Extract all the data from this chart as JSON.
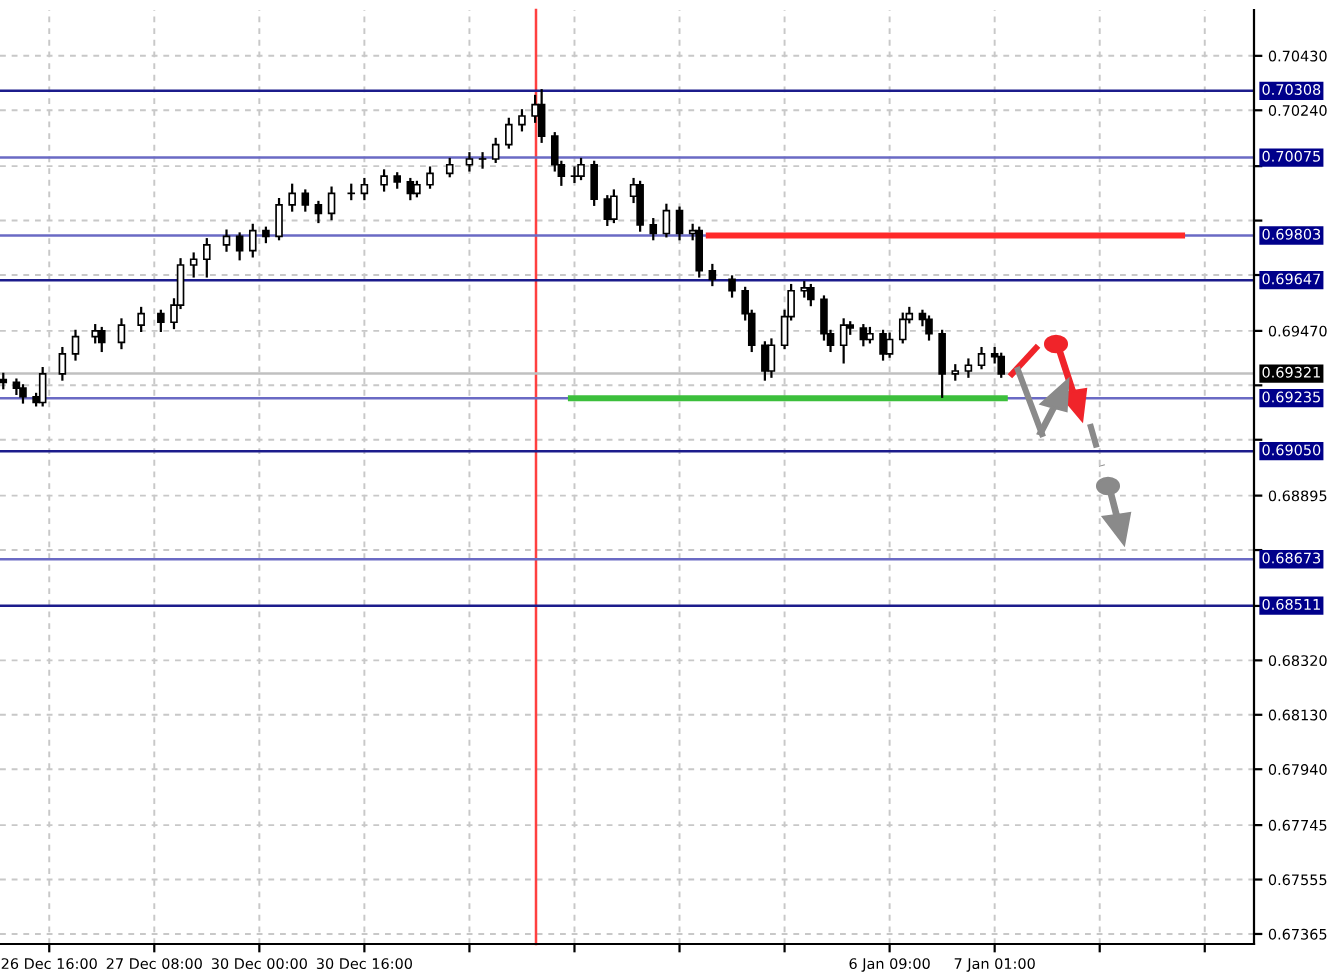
{
  "chart_data": {
    "type": "candlestick",
    "categories": [
      null,
      null,
      null,
      null,
      null,
      null,
      null,
      "26 Dec 16:00",
      null,
      null,
      null,
      null,
      null,
      null,
      null,
      null,
      null,
      null,
      null,
      null,
      null,
      null,
      null,
      "27 Dec 08:00",
      null,
      null,
      null,
      null,
      null,
      null,
      null,
      null,
      null,
      null,
      null,
      null,
      null,
      null,
      null,
      "30 Dec 00:00",
      null,
      null,
      null,
      null,
      null,
      null,
      null,
      null,
      null,
      null,
      null,
      null,
      null,
      null,
      null,
      "30 Dec 16:00",
      null,
      null,
      null,
      null,
      null,
      null,
      null,
      null,
      null,
      null,
      null,
      null,
      null,
      null,
      null,
      null,
      null,
      null,
      null,
      null,
      null,
      null,
      null,
      null,
      null,
      null,
      null,
      null,
      null,
      null,
      null,
      null,
      null,
      null,
      null,
      null,
      null,
      null,
      null,
      null,
      null,
      null,
      null,
      null,
      null,
      null,
      null,
      null,
      null,
      null,
      null,
      null,
      null,
      null,
      null,
      null,
      null,
      null,
      null,
      null,
      null,
      null,
      null,
      null,
      null,
      null,
      null,
      null,
      null,
      null,
      null,
      null,
      null,
      null,
      null,
      null,
      null,
      null,
      null,
      "6 Jan 09:00",
      null,
      null,
      null,
      null,
      null,
      null,
      null,
      null,
      null,
      null,
      null,
      null,
      null,
      null,
      null,
      "7 Jan 01:00",
      null,
      null,
      null,
      null,
      null,
      null,
      null,
      null,
      null,
      null,
      null,
      null,
      null,
      null,
      null,
      null,
      null,
      null,
      null,
      null,
      null,
      null,
      null,
      null,
      null,
      null,
      null,
      null,
      null,
      null,
      null,
      null,
      null,
      null,
      null,
      null,
      null,
      null,
      null
    ],
    "ohlc": [
      [
        0.693,
        0.6932,
        0.6927,
        0.6929
      ],
      null,
      [
        0.6929,
        0.693,
        0.6925,
        0.6927
      ],
      [
        0.6927,
        0.6928,
        0.6922,
        0.6924
      ],
      null,
      [
        0.6924,
        0.6925,
        0.6921,
        0.6922
      ],
      [
        0.6922,
        0.6934,
        0.6921,
        0.6932
      ],
      null,
      null,
      [
        0.6932,
        0.6941,
        0.693,
        0.6939
      ],
      null,
      [
        0.6939,
        0.6947,
        0.6937,
        0.6945
      ],
      null,
      null,
      [
        0.6945,
        0.6949,
        0.6943,
        0.6947
      ],
      [
        0.6947,
        0.6948,
        0.694,
        0.6943
      ],
      null,
      null,
      [
        0.6943,
        0.6951,
        0.6941,
        0.6949
      ],
      null,
      null,
      [
        0.6949,
        0.6955,
        0.6947,
        0.6953
      ],
      null,
      null,
      [
        0.6953,
        0.6954,
        0.6947,
        0.695
      ],
      null,
      [
        0.695,
        0.6958,
        0.6948,
        0.6956
      ],
      [
        0.6956,
        0.6972,
        0.6955,
        0.697
      ],
      null,
      [
        0.697,
        0.6974,
        0.6966,
        0.6972
      ],
      null,
      [
        0.6972,
        0.6979,
        0.6966,
        0.6977
      ],
      null,
      null,
      [
        0.6977,
        0.6982,
        0.6975,
        0.698
      ],
      null,
      [
        0.698,
        0.6981,
        0.6972,
        0.6975
      ],
      null,
      [
        0.6975,
        0.6984,
        0.6973,
        0.6982
      ],
      null,
      [
        0.6982,
        0.6983,
        0.6978,
        0.698
      ],
      null,
      [
        0.698,
        0.6993,
        0.6979,
        0.6991
      ],
      null,
      [
        0.6991,
        0.6998,
        0.6989,
        0.6995
      ],
      null,
      [
        0.6995,
        0.6996,
        0.6989,
        0.6991
      ],
      null,
      [
        0.6991,
        0.6992,
        0.6985,
        0.6988
      ],
      null,
      [
        0.6988,
        0.6997,
        0.6986,
        0.6995
      ],
      null,
      null,
      [
        0.6995,
        0.6998,
        0.6993,
        0.6995
      ],
      null,
      [
        0.6995,
        0.7,
        0.6993,
        0.6998
      ],
      null,
      null,
      [
        0.6998,
        0.7003,
        0.6996,
        0.7001
      ],
      null,
      [
        0.7001,
        0.7002,
        0.6997,
        0.6999
      ],
      null,
      [
        0.6999,
        0.7,
        0.6993,
        0.6995
      ],
      [
        0.6995,
        0.6999,
        0.6994,
        0.6998
      ],
      null,
      [
        0.6998,
        0.7004,
        0.6997,
        0.7002
      ],
      null,
      null,
      [
        0.7002,
        0.7007,
        0.7001,
        0.7005
      ],
      null,
      null,
      [
        0.7005,
        0.7009,
        0.7003,
        0.7007
      ],
      null,
      [
        0.7007,
        0.7009,
        0.7004,
        0.7007
      ],
      null,
      [
        0.7007,
        0.7014,
        0.7006,
        0.7012
      ],
      null,
      [
        0.7012,
        0.7021,
        0.7011,
        0.7019
      ],
      null,
      [
        0.7019,
        0.7024,
        0.7017,
        0.7022
      ],
      null,
      [
        0.7022,
        0.7029,
        0.702,
        0.7026
      ],
      [
        0.7026,
        0.7031,
        0.7013,
        0.7015
      ],
      null,
      [
        0.7015,
        0.7016,
        0.7003,
        0.7005
      ],
      [
        0.7005,
        0.7006,
        0.6998,
        0.7001
      ],
      null,
      [
        0.7001,
        0.7004,
        0.6999,
        0.7001
      ],
      [
        0.7001,
        0.7007,
        0.7,
        0.7005
      ],
      null,
      [
        0.7005,
        0.7006,
        0.6991,
        0.6993
      ],
      null,
      [
        0.6993,
        0.6994,
        0.6984,
        0.6986
      ],
      [
        0.6986,
        0.6996,
        0.6985,
        0.6994
      ],
      null,
      null,
      [
        0.6994,
        0.7,
        0.6992,
        0.6998
      ],
      [
        0.6998,
        0.6999,
        0.6982,
        0.6984
      ],
      null,
      [
        0.6984,
        0.6986,
        0.6979,
        0.6981
      ],
      null,
      [
        0.6981,
        0.6991,
        0.698,
        0.6989
      ],
      null,
      [
        0.6989,
        0.699,
        0.6979,
        0.6981
      ],
      null,
      [
        0.6981,
        0.6984,
        0.6979,
        0.6982
      ],
      [
        0.6982,
        0.6983,
        0.6966,
        0.6968
      ],
      null,
      [
        0.6968,
        0.697,
        0.6963,
        0.6965
      ],
      null,
      null,
      [
        0.6965,
        0.6966,
        0.6959,
        0.6961
      ],
      null,
      [
        0.6961,
        0.6962,
        0.6951,
        0.6953
      ],
      [
        0.6953,
        0.6954,
        0.694,
        0.6942
      ],
      null,
      [
        0.6942,
        0.6943,
        0.693,
        0.6933
      ],
      [
        0.6933,
        0.6944,
        0.6931,
        0.6942
      ],
      null,
      [
        0.6942,
        0.6954,
        0.6941,
        0.6952
      ],
      [
        0.6952,
        0.6963,
        0.6951,
        0.6961
      ],
      null,
      [
        0.6961,
        0.6964,
        0.6959,
        0.6962
      ],
      [
        0.6962,
        0.6963,
        0.6956,
        0.6958
      ],
      null,
      [
        0.6958,
        0.6959,
        0.6944,
        0.6946
      ],
      [
        0.6946,
        0.6947,
        0.694,
        0.6942
      ],
      null,
      [
        0.6942,
        0.6951,
        0.6936,
        0.6949
      ],
      [
        0.6949,
        0.695,
        0.6946,
        0.6948
      ],
      null,
      [
        0.6948,
        0.6949,
        0.6942,
        0.6944
      ],
      [
        0.6944,
        0.6948,
        0.6943,
        0.6946
      ],
      null,
      [
        0.6946,
        0.6947,
        0.6937,
        0.6939
      ],
      [
        0.6939,
        0.6946,
        0.6938,
        0.6944
      ],
      null,
      [
        0.6944,
        0.6953,
        0.6943,
        0.6951
      ],
      [
        0.6951,
        0.6955,
        0.695,
        0.6953
      ],
      null,
      [
        0.6953,
        0.6954,
        0.6949,
        0.6951
      ],
      [
        0.6951,
        0.6952,
        0.6944,
        0.6946
      ],
      null,
      [
        0.6946,
        0.6947,
        0.6924,
        0.6932
      ],
      null,
      [
        0.6932,
        0.6935,
        0.693,
        0.6933
      ],
      null,
      [
        0.6933,
        0.6937,
        0.6931,
        0.6935
      ],
      null,
      [
        0.6935,
        0.6941,
        0.6934,
        0.6939
      ],
      null,
      [
        0.6939,
        0.6941,
        0.6936,
        0.6938
      ],
      [
        0.6938,
        0.6939,
        0.6931,
        0.6932
      ],
      null,
      null,
      null,
      null,
      null,
      null,
      null,
      null,
      null,
      null,
      null,
      null,
      null,
      null,
      null,
      null,
      null,
      null,
      null,
      null,
      null,
      null,
      null,
      null,
      null,
      null,
      null,
      null,
      null,
      null,
      null,
      null,
      null,
      null,
      null,
      null,
      null,
      null
    ],
    "series": [
      {
        "type": "line",
        "color": "#ff2a2a",
        "values": [
          null,
          null,
          null,
          null,
          null,
          null,
          null,
          null,
          null,
          null,
          null,
          null,
          null,
          null,
          null,
          null,
          null,
          null,
          null,
          null,
          null,
          null,
          null,
          null,
          null,
          null,
          null,
          null,
          null,
          null,
          null,
          null,
          null,
          null,
          null,
          null,
          null,
          null,
          null,
          null,
          null,
          null,
          null,
          null,
          null,
          null,
          null,
          null,
          null,
          null,
          null,
          null,
          null,
          null,
          null,
          null,
          null,
          null,
          null,
          null,
          null,
          null,
          null,
          null,
          null,
          null,
          null,
          null,
          null,
          null,
          null,
          null,
          null,
          null,
          null,
          null,
          null,
          null,
          null,
          null,
          null,
          null,
          null,
          null,
          null,
          null,
          null,
          null,
          null,
          null,
          null,
          null,
          null,
          null,
          null,
          null,
          null,
          null,
          null,
          null,
          null,
          null,
          null,
          null,
          null,
          null,
          null,
          0.69803,
          0.69803,
          0.69803,
          0.69803,
          0.69803,
          0.69803,
          0.69803,
          0.69803,
          0.69803,
          0.69803,
          0.69803,
          0.69803,
          0.69803,
          0.69803,
          0.69803,
          0.69803,
          0.69803,
          0.69803,
          0.69803,
          0.69803,
          0.69803,
          0.69803,
          0.69803,
          0.69803,
          0.69803,
          0.69803,
          0.69803,
          0.69803,
          0.69803,
          0.69803,
          0.69803,
          0.69803,
          0.69803,
          0.69803,
          0.69803,
          0.69803,
          0.69803,
          0.69803,
          0.69803,
          0.69803,
          0.69803,
          0.69803,
          0.69803,
          0.69803,
          0.69803,
          0.69803,
          0.69803,
          0.69803,
          0.69803,
          0.69803,
          0.69803,
          0.69803,
          0.69803,
          0.69803,
          0.69803,
          0.69803,
          0.69803,
          0.69803,
          0.69803,
          0.69803,
          0.69803,
          0.69803,
          0.69803,
          0.69803,
          0.69803,
          0.69803,
          0.69803,
          0.69803,
          0.69803,
          0.69803,
          0.69803,
          0.69803,
          0.69803,
          0.69803,
          null,
          null,
          null,
          null,
          null,
          null,
          null,
          null,
          null,
          null
        ]
      },
      {
        "type": "line",
        "color": "#3cbf3c",
        "values": [
          null,
          null,
          null,
          null,
          null,
          null,
          null,
          null,
          null,
          null,
          null,
          null,
          null,
          null,
          null,
          null,
          null,
          null,
          null,
          null,
          null,
          null,
          null,
          null,
          null,
          null,
          null,
          null,
          null,
          null,
          null,
          null,
          null,
          null,
          null,
          null,
          null,
          null,
          null,
          null,
          null,
          null,
          null,
          null,
          null,
          null,
          null,
          null,
          null,
          null,
          null,
          null,
          null,
          null,
          null,
          null,
          null,
          null,
          null,
          null,
          null,
          null,
          null,
          null,
          null,
          null,
          null,
          null,
          null,
          null,
          null,
          null,
          null,
          null,
          null,
          null,
          null,
          null,
          null,
          null,
          null,
          null,
          null,
          null,
          null,
          null,
          0.69235,
          0.69235,
          0.69235,
          0.69235,
          0.69235,
          0.69235,
          0.69235,
          0.69235,
          0.69235,
          0.69235,
          0.69235,
          0.69235,
          0.69235,
          0.69235,
          0.69235,
          0.69235,
          0.69235,
          0.69235,
          0.69235,
          0.69235,
          0.69235,
          0.69235,
          0.69235,
          0.69235,
          0.69235,
          0.69235,
          0.69235,
          0.69235,
          0.69235,
          0.69235,
          0.69235,
          0.69235,
          0.69235,
          0.69235,
          0.69235,
          0.69235,
          0.69235,
          0.69235,
          0.69235,
          0.69235,
          0.69235,
          0.69235,
          0.69235,
          0.69235,
          0.69235,
          0.69235,
          0.69235,
          0.69235,
          0.69235,
          0.69235,
          0.69235,
          0.69235,
          0.69235,
          0.69235,
          0.69235,
          0.69235,
          0.69235,
          0.69235,
          0.69235,
          0.69235,
          0.69235,
          0.69235,
          0.69235,
          0.69235,
          0.69235,
          0.69235,
          0.69235,
          0.69235,
          null,
          null,
          null,
          null,
          null,
          null,
          null,
          null,
          null,
          null,
          null,
          null,
          null,
          null,
          null,
          null,
          null,
          null,
          null,
          null,
          null,
          null,
          null,
          null,
          null,
          null,
          null,
          null,
          null,
          null,
          null,
          null,
          null,
          null,
          null,
          null,
          null
        ]
      }
    ],
    "ylim": [
      0.6733,
      0.7059
    ],
    "yticks": [
      {
        "value": 0.7043,
        "label": "0.70430"
      },
      {
        "value": 0.7024,
        "label": "0.70240"
      },
      {
        "value": 0.70045,
        "label": null
      },
      {
        "value": 0.69855,
        "label": null
      },
      {
        "value": 0.69665,
        "label": null
      },
      {
        "value": 0.6947,
        "label": "0.69470"
      },
      {
        "value": 0.6928,
        "label": null
      },
      {
        "value": 0.6909,
        "label": null
      },
      {
        "value": 0.68895,
        "label": "0.68895"
      },
      {
        "value": 0.68705,
        "label": null
      },
      {
        "value": 0.6851,
        "label": null
      },
      {
        "value": 0.6832,
        "label": "0.68320"
      },
      {
        "value": 0.6813,
        "label": "0.68130"
      },
      {
        "value": 0.6794,
        "label": "0.67940"
      },
      {
        "value": 0.67745,
        "label": "0.67745"
      },
      {
        "value": 0.67555,
        "label": "0.67555"
      },
      {
        "value": 0.67365,
        "label": "0.67365"
      }
    ],
    "ref_lines": [
      {
        "axis": "y",
        "value": 0.70308,
        "label": "0.70308",
        "color": "#1c1c8c"
      },
      {
        "axis": "y",
        "value": 0.70075,
        "label": "0.70075",
        "color": "#6a6ac4"
      },
      {
        "axis": "y",
        "value": 0.69803,
        "label": "0.69803",
        "color": "#6a6ac4"
      },
      {
        "axis": "y",
        "value": 0.69647,
        "label": "0.69647",
        "color": "#1c1c8c"
      },
      {
        "axis": "y",
        "value": 0.69321,
        "label": "0.69321",
        "color": "#c0c0c0"
      },
      {
        "axis": "y",
        "value": 0.69235,
        "label": "0.69235",
        "color": "#6a6ac4"
      },
      {
        "axis": "y",
        "value": 0.6905,
        "label": "0.69050",
        "color": "#1c1c8c"
      },
      {
        "axis": "y",
        "value": 0.68673,
        "label": "0.68673",
        "color": "#6a6ac4"
      },
      {
        "axis": "y",
        "value": 0.68511,
        "label": "0.68511",
        "color": "#1c1c8c"
      }
    ],
    "grid": true,
    "legend": false
  }
}
